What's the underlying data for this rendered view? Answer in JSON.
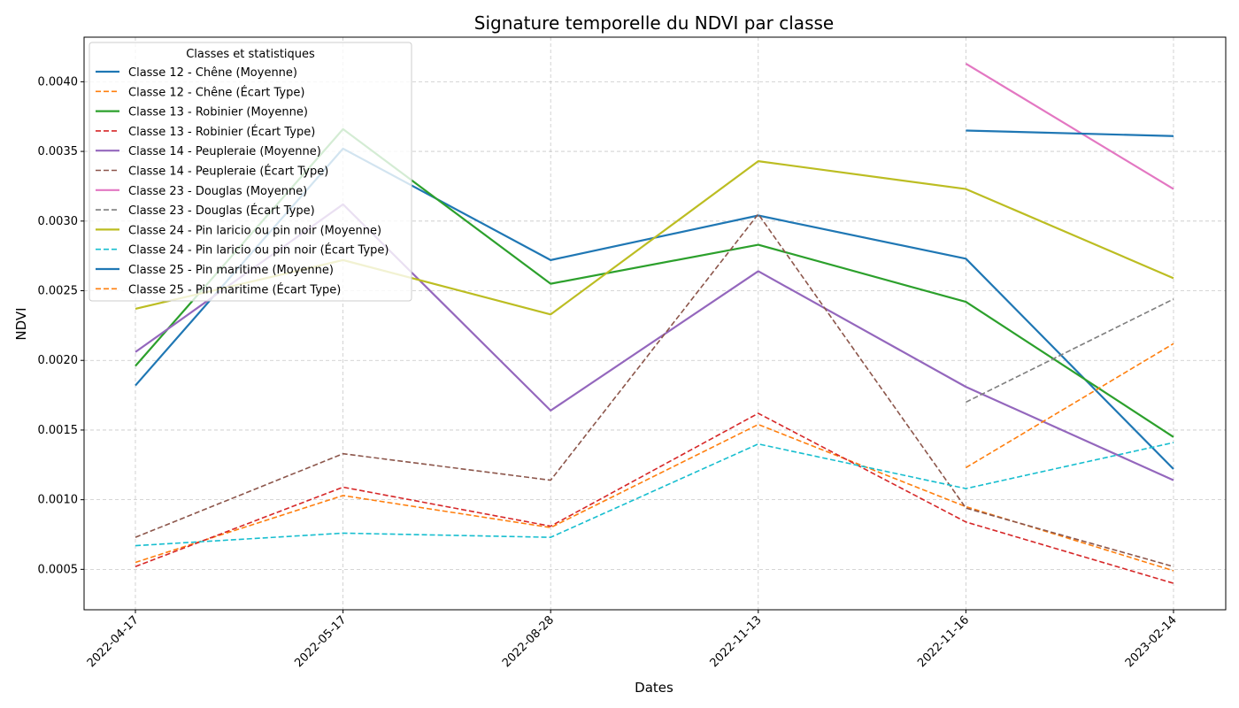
{
  "chart_data": {
    "type": "line",
    "title": "Signature temporelle du NDVI par classe",
    "xlabel": "Dates",
    "ylabel": "NDVI",
    "categories": [
      "2022-04-17",
      "2022-05-17",
      "2022-08-28",
      "2022-11-13",
      "2022-11-16",
      "2023-02-14"
    ],
    "y_ticks": [
      0.0005,
      0.001,
      0.0015,
      0.002,
      0.0025,
      0.003,
      0.0035,
      0.004
    ],
    "y_tick_labels": [
      "0.0005",
      "0.0010",
      "0.0015",
      "0.0020",
      "0.0025",
      "0.0030",
      "0.0035",
      "0.0040"
    ],
    "ylim": [
      0.00021,
      0.00432
    ],
    "grid": true,
    "legend_title": "Classes et statistiques",
    "legend_position": "top-left",
    "series": [
      {
        "name": "Classe 12 - Chêne (Moyenne)",
        "color": "#1f77b4",
        "dashed": false,
        "values": [
          0.00182,
          0.00352,
          0.00272,
          0.00304,
          0.00273,
          0.00122
        ]
      },
      {
        "name": "Classe 12 - Chêne (Écart Type)",
        "color": "#ff7f0e",
        "dashed": true,
        "values": [
          0.00055,
          0.00103,
          0.0008,
          0.00154,
          0.00095,
          0.00049
        ]
      },
      {
        "name": "Classe 13 - Robinier (Moyenne)",
        "color": "#2ca02c",
        "dashed": false,
        "values": [
          0.00196,
          0.00366,
          0.00255,
          0.00283,
          0.00242,
          0.00145
        ]
      },
      {
        "name": "Classe 13 - Robinier (Écart Type)",
        "color": "#d62728",
        "dashed": true,
        "values": [
          0.00052,
          0.00109,
          0.00081,
          0.00162,
          0.00084,
          0.0004
        ]
      },
      {
        "name": "Classe 14 - Peupleraie (Moyenne)",
        "color": "#9467bd",
        "dashed": false,
        "values": [
          0.00206,
          0.00312,
          0.00164,
          0.00264,
          0.00181,
          0.00114
        ]
      },
      {
        "name": "Classe 14 - Peupleraie (Écart Type)",
        "color": "#8c564b",
        "dashed": true,
        "values": [
          0.00073,
          0.00133,
          0.00114,
          0.00305,
          0.00094,
          0.00052
        ]
      },
      {
        "name": "Classe 23 - Douglas (Moyenne)",
        "color": "#e377c2",
        "dashed": false,
        "values": [
          null,
          null,
          null,
          null,
          0.00413,
          0.00323
        ]
      },
      {
        "name": "Classe 23 - Douglas (Écart Type)",
        "color": "#7f7f7f",
        "dashed": true,
        "values": [
          null,
          null,
          null,
          null,
          0.0017,
          0.00244
        ]
      },
      {
        "name": "Classe 24 - Pin laricio ou pin noir (Moyenne)",
        "color": "#bcbd22",
        "dashed": false,
        "values": [
          0.00237,
          0.00272,
          0.00233,
          0.00343,
          0.00323,
          0.00259
        ]
      },
      {
        "name": "Classe 24 - Pin laricio ou pin noir (Écart Type)",
        "color": "#17becf",
        "dashed": true,
        "values": [
          0.00067,
          0.00076,
          0.00073,
          0.0014,
          0.00108,
          0.00141
        ]
      },
      {
        "name": "Classe 25 - Pin maritime (Moyenne)",
        "color": "#1f77b4",
        "dashed": false,
        "values": [
          null,
          null,
          null,
          null,
          0.00365,
          0.00361
        ]
      },
      {
        "name": "Classe 25 - Pin maritime (Écart Type)",
        "color": "#ff7f0e",
        "dashed": true,
        "values": [
          null,
          null,
          null,
          null,
          0.00123,
          0.00212
        ]
      }
    ]
  }
}
